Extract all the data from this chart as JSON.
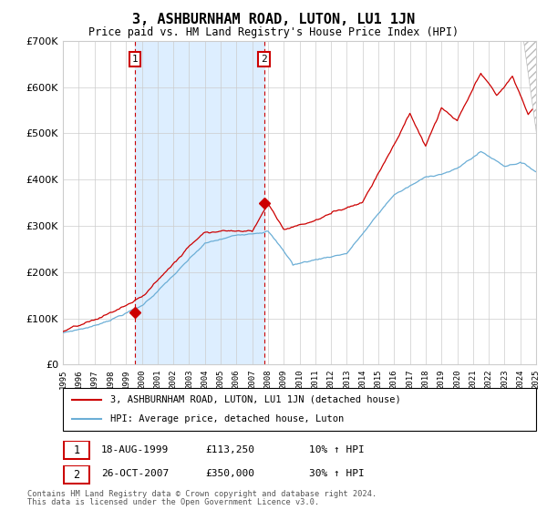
{
  "title": "3, ASHBURNHAM ROAD, LUTON, LU1 1JN",
  "subtitle": "Price paid vs. HM Land Registry's House Price Index (HPI)",
  "legend_line1": "3, ASHBURNHAM ROAD, LUTON, LU1 1JN (detached house)",
  "legend_line2": "HPI: Average price, detached house, Luton",
  "footnote1": "Contains HM Land Registry data © Crown copyright and database right 2024.",
  "footnote2": "This data is licensed under the Open Government Licence v3.0.",
  "transaction1_date": "18-AUG-1999",
  "transaction1_price": "£113,250",
  "transaction1_hpi": "10% ↑ HPI",
  "transaction2_date": "26-OCT-2007",
  "transaction2_price": "£350,000",
  "transaction2_hpi": "30% ↑ HPI",
  "hpi_color": "#6baed6",
  "price_color": "#cc0000",
  "shade_color": "#ddeeff",
  "background_color": "#ffffff",
  "grid_color": "#cccccc",
  "ylim": [
    0,
    700000
  ],
  "t1_year": 1999.583,
  "t1_price": 113250,
  "t2_year": 2007.75,
  "t2_price": 350000
}
